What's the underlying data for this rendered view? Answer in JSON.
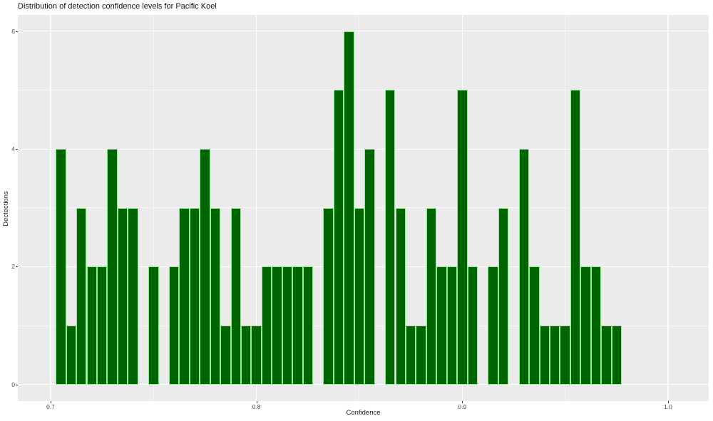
{
  "chart_data": {
    "type": "bar",
    "subtype": "histogram",
    "title": "Distribution of detection confidence levels for Pacific Koel",
    "xlabel": "Confidence",
    "ylabel": "Dectections",
    "legend_position": "none",
    "grid": true,
    "x_ticks": [
      0.7,
      0.8,
      0.9,
      1.0
    ],
    "x_tick_labels": [
      "0.7",
      "0.8",
      "0.9",
      "1.0"
    ],
    "x_minor_ticks": [
      0.75,
      0.85,
      0.95
    ],
    "y_ticks": [
      0,
      2,
      4,
      6
    ],
    "y_tick_labels": [
      "0",
      "2",
      "4",
      "6"
    ],
    "y_minor_ticks": [
      1,
      3,
      5
    ],
    "xlim": [
      0.68407,
      1.01975
    ],
    "ylim": [
      -0.278,
      6.272
    ],
    "bin_width": 0.005,
    "bin_centers": [
      0.705,
      0.71,
      0.715,
      0.72,
      0.725,
      0.73,
      0.735,
      0.74,
      0.745,
      0.75,
      0.755,
      0.76,
      0.765,
      0.77,
      0.775,
      0.78,
      0.785,
      0.79,
      0.795,
      0.8,
      0.805,
      0.81,
      0.815,
      0.82,
      0.825,
      0.83,
      0.835,
      0.84,
      0.845,
      0.85,
      0.855,
      0.86,
      0.865,
      0.87,
      0.875,
      0.88,
      0.885,
      0.89,
      0.895,
      0.9,
      0.905,
      0.91,
      0.915,
      0.92,
      0.925,
      0.93,
      0.935,
      0.94,
      0.945,
      0.95,
      0.955,
      0.96,
      0.965,
      0.97,
      0.975
    ],
    "counts": [
      4,
      1,
      3,
      2,
      2,
      4,
      3,
      3,
      0,
      2,
      0,
      2,
      3,
      3,
      4,
      3,
      1,
      3,
      1,
      1,
      2,
      2,
      2,
      2,
      2,
      0,
      3,
      5,
      6,
      3,
      4,
      0,
      5,
      3,
      1,
      1,
      3,
      2,
      2,
      5,
      2,
      0,
      2,
      3,
      0,
      4,
      2,
      1,
      1,
      1,
      5,
      2,
      2,
      1,
      1
    ],
    "colors": {
      "bar_fill": "#006400",
      "bar_border": "#90EE90",
      "panel_bg": "#EBEBEB",
      "grid_major": "#FFFFFF",
      "grid_minor": "#F7F7F7",
      "tick_label": "#4D4D4D",
      "title_text": "#111111",
      "axis_title_text": "#1A1A1A",
      "figure_bg": "#FFFFFF"
    }
  }
}
